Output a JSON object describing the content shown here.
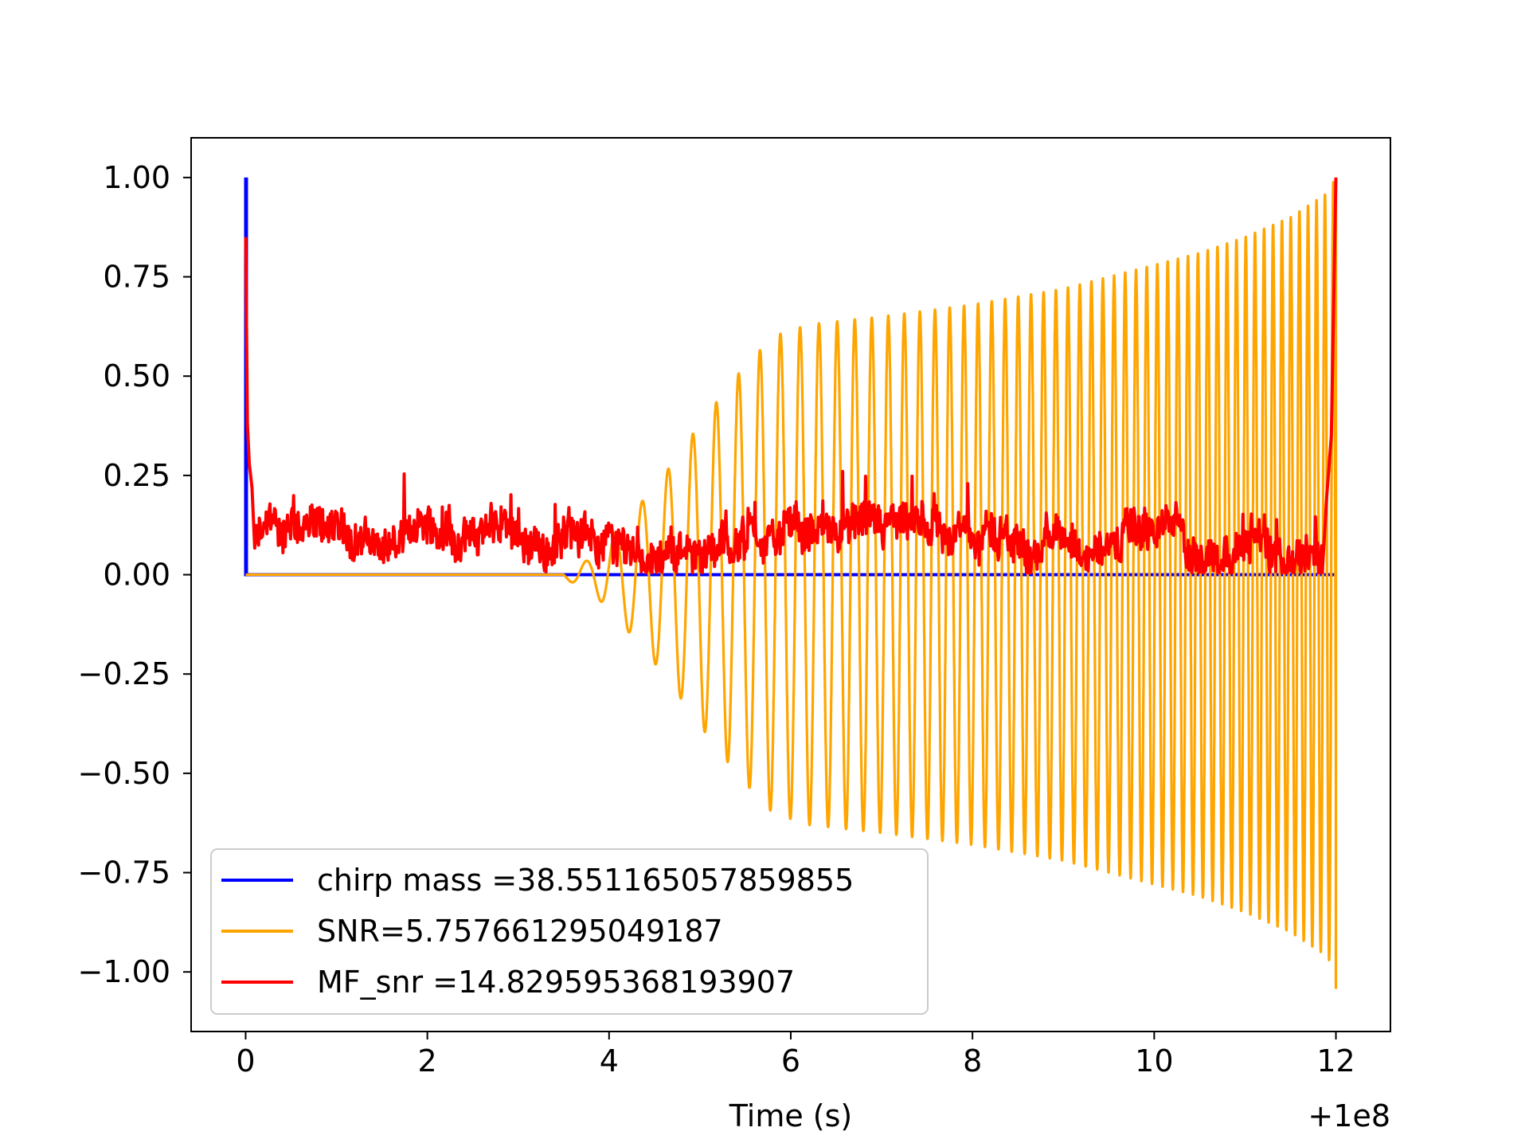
{
  "chart_data": {
    "type": "line",
    "title": "",
    "xlabel": "Time (s)",
    "ylabel": "",
    "x_offset_label": "+1e8",
    "xlim": [
      -0.6,
      12.6
    ],
    "ylim": [
      -1.15,
      1.1
    ],
    "x_ticks": [
      0,
      2,
      4,
      6,
      8,
      10,
      12
    ],
    "x_tick_labels": [
      "0",
      "2",
      "4",
      "6",
      "8",
      "10",
      "12"
    ],
    "y_ticks": [
      1.0,
      0.75,
      0.5,
      0.25,
      0.0,
      -0.25,
      -0.5,
      -0.75,
      -1.0
    ],
    "y_tick_labels": [
      "1.00",
      "0.75",
      "0.50",
      "0.25",
      "0.00",
      "−0.25",
      "−0.50",
      "−0.75",
      "−1.00"
    ],
    "grid": false,
    "legend_position": "lower-left",
    "series": [
      {
        "name": "chirp mass =38.551165057859855",
        "color": "#0000ff",
        "x": [
          0.0,
          0.0,
          0.0,
          0.0,
          12.0
        ],
        "y": [
          0.0,
          1.0,
          0.3,
          0.0,
          0.0
        ]
      },
      {
        "name": "SNR=5.757661295049187",
        "color": "#ffa500",
        "description_points": {
          "x": [
            0.0,
            3.4,
            3.8,
            4.2,
            4.6,
            5.0,
            5.4,
            5.8,
            6.2,
            6.6,
            7.0,
            8.0,
            9.0,
            10.0,
            10.5,
            11.0,
            11.5,
            11.9,
            12.0
          ],
          "amplitude": [
            0.0,
            0.0,
            0.04,
            0.14,
            0.25,
            0.38,
            0.5,
            0.6,
            0.63,
            0.64,
            0.65,
            0.68,
            0.72,
            0.78,
            0.81,
            0.85,
            0.9,
            0.96,
            1.0
          ],
          "oscillation_start": 3.5,
          "frequency_start_hz": 3.0,
          "frequency_end_hz": 11.0
        }
      },
      {
        "name": "MF_snr =14.829595368193907",
        "color": "#ff0000",
        "peaks": {
          "x": [
            0.0,
            0.02,
            0.05,
            0.1,
            11.95,
            12.0
          ],
          "y": [
            0.85,
            0.4,
            0.3,
            0.2,
            0.35,
            1.0
          ]
        },
        "noise_level": 0.08,
        "noise_max": 0.26
      }
    ]
  },
  "legend": {
    "entries": [
      {
        "label": "chirp mass =38.551165057859855",
        "color": "#0000ff"
      },
      {
        "label": "SNR=5.757661295049187",
        "color": "#ffa500"
      },
      {
        "label": "MF_snr =14.829595368193907",
        "color": "#ff0000"
      }
    ]
  }
}
